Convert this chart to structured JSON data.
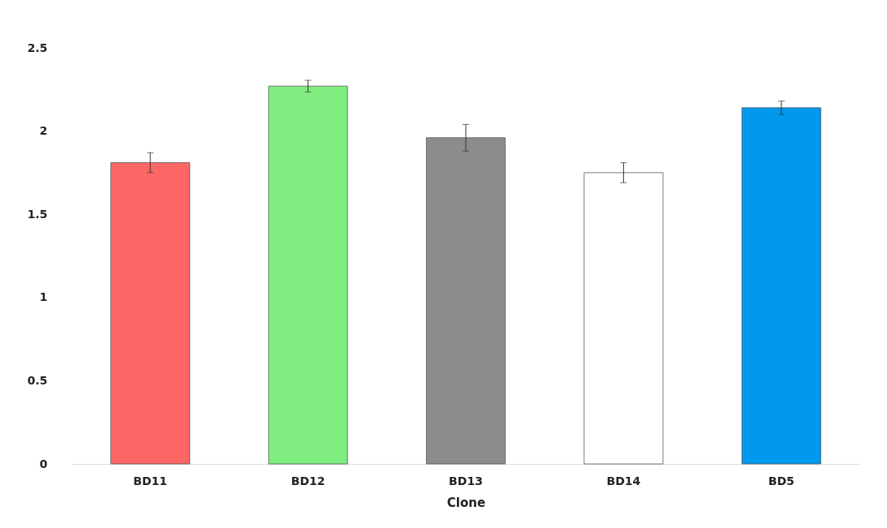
{
  "chart_data": {
    "type": "bar",
    "xlabel": "Clone",
    "categories": [
      "BD11",
      "BD12",
      "BD13",
      "BD14",
      "BD5"
    ],
    "values": [
      1.81,
      2.27,
      1.96,
      1.75,
      2.14
    ],
    "colors": [
      "#ff6666",
      "#80ee80",
      "#8c8c8c",
      "#ffffff",
      "#0099ee"
    ],
    "errors": [
      0.06,
      0.035,
      0.08,
      0.06,
      0.04
    ],
    "ylim": [
      0,
      2.5
    ],
    "yticks": [
      0,
      0.5,
      1,
      1.5,
      2,
      2.5
    ],
    "grid": false
  }
}
